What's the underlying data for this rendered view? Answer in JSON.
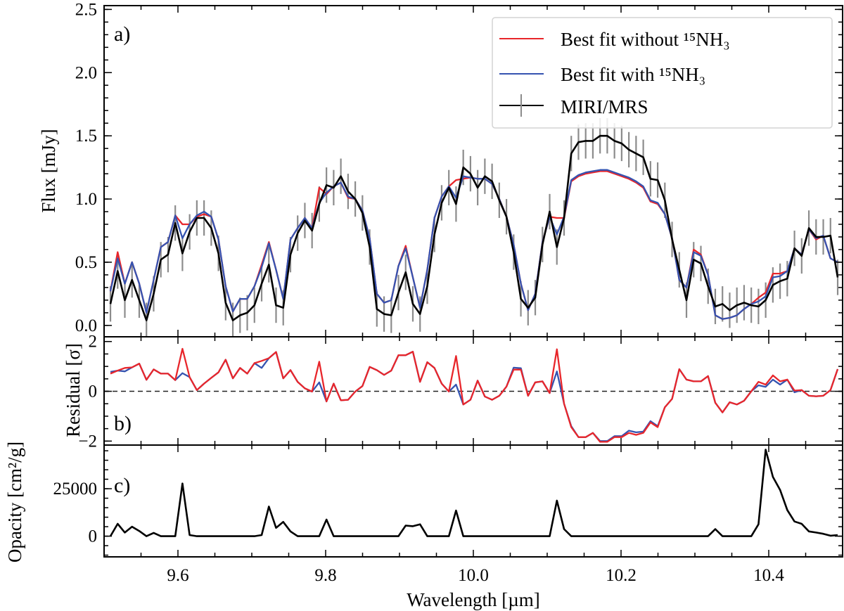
{
  "chart_data": {
    "type": "line",
    "x_start": 9.5086,
    "x_step": 0.00975,
    "xlim": [
      9.5,
      10.5
    ],
    "xlabel": "Wavelength [µm]",
    "xticks": [
      9.6,
      9.8,
      10.0,
      10.2,
      10.4
    ],
    "xtick_labels": [
      "9.6",
      "9.8",
      "10.0",
      "10.2",
      "10.4"
    ],
    "colors": {
      "red": "#e8262b",
      "blue": "#3553b0",
      "black": "#000000",
      "errorbar": "#8c8c8c"
    },
    "legend": {
      "placement": "top-right",
      "items": [
        "Best fit without ¹⁵NH₃",
        "Best fit with ¹⁵NH₃",
        "MIRI/MRS"
      ]
    },
    "panels": [
      {
        "label": "a)",
        "ylabel": "Flux [mJy]",
        "ylim": [
          -0.09,
          2.53
        ],
        "yticks": [
          0,
          0.5,
          1.0,
          1.5,
          2.0,
          2.5
        ],
        "ytick_labels": [
          "0.0",
          "0.5",
          "1.0",
          "1.5",
          "2.0",
          "2.5"
        ],
        "yminor": 0.1,
        "series": [
          {
            "name": "Best fit without ¹⁵NH₃",
            "color": "#e8262b",
            "values": [
              0.27,
              0.58,
              0.33,
              0.5,
              0.33,
              0.1,
              0.36,
              0.62,
              0.66,
              0.87,
              0.8,
              0.8,
              0.86,
              0.88,
              0.86,
              0.68,
              0.31,
              0.11,
              0.21,
              0.21,
              0.31,
              0.48,
              0.66,
              0.44,
              0.21,
              0.68,
              0.77,
              0.85,
              0.77,
              1.09,
              1.04,
              1.1,
              1.13,
              1.01,
              1.0,
              0.91,
              0.69,
              0.25,
              0.18,
              0.2,
              0.47,
              0.63,
              0.38,
              0.14,
              0.44,
              0.85,
              1.02,
              1.1,
              1.15,
              1.16,
              1.17,
              1.16,
              1.16,
              1.12,
              1.0,
              0.86,
              0.64,
              0.33,
              0.12,
              0.25,
              0.66,
              0.86,
              0.85,
              0.85,
              1.14,
              1.18,
              1.2,
              1.21,
              1.22,
              1.22,
              1.2,
              1.18,
              1.16,
              1.13,
              1.09,
              0.98,
              0.96,
              0.88,
              0.69,
              0.36,
              0.3,
              0.6,
              0.56,
              0.4,
              0.08,
              0.05,
              0.06,
              0.08,
              0.13,
              0.17,
              0.22,
              0.26,
              0.41,
              0.41,
              0.43,
              0.61,
              0.56,
              0.76,
              0.68,
              0.71,
              0.53,
              0.5
            ]
          },
          {
            "name": "Best fit with ¹⁵NH₃",
            "color": "#3553b0",
            "values": [
              0.27,
              0.53,
              0.33,
              0.5,
              0.33,
              0.1,
              0.36,
              0.62,
              0.66,
              0.87,
              0.69,
              0.8,
              0.87,
              0.9,
              0.86,
              0.68,
              0.31,
              0.11,
              0.21,
              0.21,
              0.31,
              0.46,
              0.65,
              0.44,
              0.21,
              0.68,
              0.77,
              0.85,
              0.77,
              0.97,
              1.05,
              1.1,
              1.13,
              1.02,
              1.0,
              0.91,
              0.69,
              0.25,
              0.18,
              0.2,
              0.47,
              0.61,
              0.38,
              0.14,
              0.44,
              0.85,
              1.02,
              1.1,
              1.01,
              1.18,
              1.17,
              1.16,
              1.16,
              1.12,
              1.0,
              0.86,
              0.64,
              0.33,
              0.12,
              0.25,
              0.66,
              0.86,
              0.72,
              0.86,
              1.15,
              1.19,
              1.21,
              1.22,
              1.23,
              1.23,
              1.21,
              1.19,
              1.17,
              1.14,
              1.1,
              0.99,
              0.97,
              0.88,
              0.69,
              0.36,
              0.3,
              0.58,
              0.55,
              0.4,
              0.08,
              0.05,
              0.06,
              0.08,
              0.13,
              0.17,
              0.19,
              0.23,
              0.38,
              0.39,
              0.43,
              0.61,
              0.56,
              0.76,
              0.69,
              0.71,
              0.53,
              0.5
            ]
          },
          {
            "name": "MIRI/MRS",
            "color": "#000000",
            "yerr": 0.14,
            "values": [
              0.17,
              0.43,
              0.2,
              0.36,
              0.2,
              0.04,
              0.25,
              0.52,
              0.56,
              0.81,
              0.57,
              0.74,
              0.85,
              0.85,
              0.77,
              0.57,
              0.18,
              0.04,
              0.08,
              0.1,
              0.16,
              0.33,
              0.48,
              0.16,
              0.14,
              0.56,
              0.73,
              0.83,
              0.75,
              0.96,
              1.11,
              1.09,
              1.18,
              1.06,
              1.0,
              0.89,
              0.62,
              0.13,
              0.09,
              0.08,
              0.26,
              0.42,
              0.17,
              0.09,
              0.31,
              0.72,
              0.97,
              1.09,
              0.96,
              1.25,
              1.2,
              1.09,
              1.18,
              1.14,
              0.99,
              0.86,
              0.58,
              0.21,
              0.14,
              0.22,
              0.64,
              0.9,
              0.62,
              0.85,
              1.36,
              1.45,
              1.46,
              1.46,
              1.5,
              1.5,
              1.46,
              1.44,
              1.39,
              1.36,
              1.33,
              1.16,
              1.15,
              0.99,
              0.68,
              0.44,
              0.2,
              0.52,
              0.49,
              0.31,
              0.15,
              0.17,
              0.12,
              0.16,
              0.18,
              0.16,
              0.15,
              0.2,
              0.32,
              0.35,
              0.37,
              0.61,
              0.55,
              0.77,
              0.7,
              0.7,
              0.71,
              0.38
            ]
          }
        ]
      },
      {
        "label": "b)",
        "ylabel": "Residual [σ]",
        "ylim": [
          -2.16,
          2.19
        ],
        "yticks": [
          -2,
          0,
          2
        ],
        "ytick_labels": [
          "−2",
          "0",
          "2"
        ],
        "yminor": 0.5,
        "reference_line": 0,
        "series": [
          {
            "name": "Best fit with ¹⁵NH₃",
            "color": "#3553b0",
            "values": [
              0.78,
              0.83,
              0.8,
              0.96,
              1.11,
              0.46,
              0.88,
              0.71,
              0.71,
              0.45,
              0.73,
              0.57,
              0.05,
              0.31,
              0.54,
              0.76,
              1.27,
              0.52,
              0.94,
              0.71,
              1.13,
              0.94,
              1.33,
              1.58,
              0.52,
              0.85,
              0.38,
              0.12,
              -0.01,
              0.36,
              -0.41,
              0.31,
              -0.36,
              -0.34,
              -0.01,
              0.21,
              0.98,
              0.85,
              0.66,
              0.83,
              1.45,
              1.45,
              1.59,
              0.38,
              1.17,
              0.94,
              0.31,
              -0.01,
              0.27,
              -0.53,
              -0.34,
              0.43,
              -0.21,
              -0.34,
              -0.18,
              0.19,
              0.95,
              0.93,
              -0.18,
              0.36,
              0.4,
              -0.07,
              0.8,
              -0.5,
              -1.4,
              -1.84,
              -1.84,
              -1.67,
              -2.0,
              -2.0,
              -1.8,
              -1.8,
              -1.58,
              -1.65,
              -1.62,
              -1.2,
              -1.4,
              -0.64,
              -0.3,
              0.89,
              0.47,
              0.4,
              0.4,
              0.61,
              -0.46,
              -0.85,
              -0.44,
              -0.53,
              -0.38,
              0.0,
              0.24,
              0.18,
              0.47,
              0.27,
              0.47,
              -0.04,
              0.05,
              -0.18,
              -0.2,
              -0.18,
              0.05,
              0.89
            ]
          },
          {
            "name": "Best fit without ¹⁵NH₃",
            "color": "#e8262b",
            "values": [
              0.71,
              0.83,
              0.94,
              0.96,
              1.11,
              0.46,
              0.88,
              0.71,
              0.71,
              0.45,
              1.71,
              0.57,
              0.05,
              0.31,
              0.54,
              0.76,
              1.27,
              0.52,
              0.94,
              0.71,
              1.13,
              1.22,
              1.33,
              1.58,
              0.52,
              0.85,
              0.38,
              0.12,
              -0.01,
              1.19,
              -0.41,
              0.31,
              -0.36,
              -0.34,
              -0.01,
              0.21,
              0.98,
              0.85,
              0.66,
              0.83,
              1.45,
              1.45,
              1.59,
              0.38,
              1.17,
              0.94,
              0.31,
              -0.01,
              1.42,
              -0.53,
              -0.34,
              0.43,
              -0.21,
              -0.34,
              -0.18,
              0.19,
              0.87,
              0.87,
              -0.18,
              0.36,
              0.4,
              -0.07,
              1.69,
              -0.5,
              -1.44,
              -1.84,
              -1.84,
              -1.67,
              -2.03,
              -2.03,
              -1.84,
              -1.84,
              -1.67,
              -1.75,
              -1.67,
              -1.25,
              -1.44,
              -0.64,
              -0.3,
              0.89,
              0.47,
              0.4,
              0.4,
              0.61,
              -0.46,
              -0.85,
              -0.44,
              -0.53,
              -0.38,
              0.0,
              0.38,
              0.27,
              0.64,
              0.4,
              0.47,
              0.03,
              0.05,
              -0.18,
              -0.2,
              -0.18,
              0.05,
              0.89
            ]
          }
        ]
      },
      {
        "label": "c)",
        "ylabel": "Opacity [cm²/g]",
        "ylim": [
          -10900,
          48000
        ],
        "yticks": [
          0,
          25000
        ],
        "ytick_labels": [
          "0",
          "25000"
        ],
        "yminor": 5000,
        "series": [
          {
            "name": "Opacity",
            "color": "#000000",
            "values": [
              0,
              6500,
              1900,
              5000,
              2750,
              0,
              1750,
              0,
              0,
              0,
              27750,
              600,
              0,
              0,
              0,
              0,
              0,
              0,
              0,
              0,
              0,
              600,
              15600,
              4400,
              7500,
              2500,
              0,
              0,
              0,
              0,
              8750,
              0,
              0,
              0,
              0,
              0,
              0,
              0,
              0,
              0,
              0,
              5600,
              5250,
              6250,
              0,
              0,
              0,
              0,
              13500,
              0,
              0,
              0,
              0,
              0,
              0,
              0,
              0,
              0,
              0,
              0,
              0,
              0,
              18750,
              3750,
              0,
              0,
              0,
              0,
              0,
              0,
              0,
              0,
              0,
              0,
              0,
              0,
              0,
              0,
              0,
              0,
              0,
              0,
              0,
              0,
              3750,
              0,
              0,
              0,
              0,
              0,
              6250,
              45600,
              31250,
              24400,
              13750,
              7750,
              6500,
              2500,
              1900,
              1250,
              250,
              600
            ]
          }
        ]
      }
    ]
  }
}
